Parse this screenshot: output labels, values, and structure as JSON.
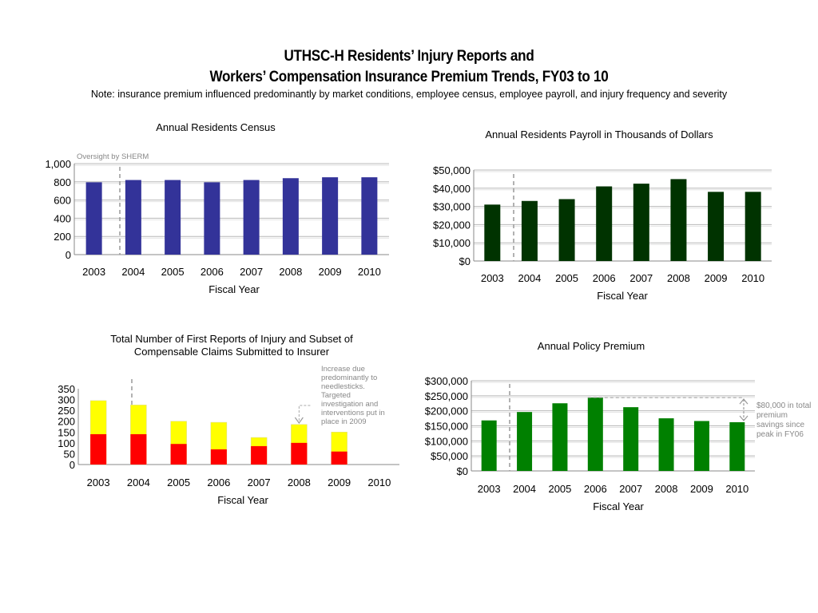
{
  "header": {
    "title_line1": "UTHSC-H Residents’ Injury Reports and",
    "title_line2": "Workers’ Compensation Insurance Premium Trends, FY03 to 10",
    "note": "Note: insurance premium influenced predominantly by market conditions, employee census, employee payroll, and injury frequency and severity"
  },
  "colors": {
    "census": "#333399",
    "payroll": "#003300",
    "injury_total": "#ffff00",
    "injury_claims": "#ff0000",
    "premium": "#008000",
    "grid": "#b8b8b8",
    "dashed": "#999999"
  },
  "chart_data": [
    {
      "id": "census",
      "type": "bar",
      "title": "Annual Residents Census",
      "xlabel": "Fiscal Year",
      "ylabel": "",
      "categories": [
        "2003",
        "2004",
        "2005",
        "2006",
        "2007",
        "2008",
        "2009",
        "2010"
      ],
      "values": [
        795,
        820,
        820,
        795,
        820,
        840,
        850,
        850
      ],
      "ylim": [
        0,
        1000
      ],
      "yticks": [
        "0",
        "200",
        "400",
        "600",
        "800",
        "1,000"
      ],
      "grid": true,
      "annotation": "Oversight by SHERM"
    },
    {
      "id": "payroll",
      "type": "bar",
      "title": "Annual Residents Payroll in Thousands of Dollars",
      "xlabel": "Fiscal Year",
      "ylabel": "",
      "categories": [
        "2003",
        "2004",
        "2005",
        "2006",
        "2007",
        "2008",
        "2009",
        "2010"
      ],
      "values": [
        31000,
        33000,
        34000,
        41000,
        42500,
        45000,
        38000,
        38000
      ],
      "ylim": [
        0,
        50000
      ],
      "yticks": [
        "$0",
        "$10,000",
        "$20,000",
        "$30,000",
        "$40,000",
        "$50,000"
      ],
      "grid": true
    },
    {
      "id": "injury",
      "type": "bar",
      "title": "Total Number of First Reports of Injury and Subset of Compensable Claims Submitted to Insurer",
      "title_lines": [
        "Total Number of First Reports of Injury and Subset of",
        "Compensable Claims Submitted to Insurer"
      ],
      "xlabel": "Fiscal Year",
      "ylabel": "",
      "categories": [
        "2003",
        "2004",
        "2005",
        "2006",
        "2007",
        "2008",
        "2009",
        "2010"
      ],
      "series": [
        {
          "values": [
            295,
            275,
            200,
            195,
            125,
            185,
            150,
            0
          ]
        },
        {
          "values": [
            140,
            140,
            95,
            70,
            85,
            100,
            60,
            0
          ]
        }
      ],
      "ylim": [
        0,
        350
      ],
      "yticks": [
        "0",
        "50",
        "100",
        "150",
        "200",
        "250",
        "300",
        "350"
      ],
      "grid": false,
      "annotation": "Increase due predominantly to needlesticks. Targeted investigation and interventions put in place in 2009"
    },
    {
      "id": "premium",
      "type": "bar",
      "title": "Annual Policy Premium",
      "xlabel": "Fiscal Year",
      "ylabel": "",
      "categories": [
        "2003",
        "2004",
        "2005",
        "2006",
        "2007",
        "2008",
        "2009",
        "2010"
      ],
      "values": [
        168000,
        196000,
        225000,
        244000,
        212000,
        175000,
        166000,
        162000
      ],
      "ylim": [
        0,
        300000
      ],
      "yticks": [
        "$0",
        "$50,000",
        "$100,000",
        "$150,000",
        "$200,000",
        "$250,000",
        "$300,000"
      ],
      "grid": true,
      "annotation": "$80,000 in total premium savings since peak in FY06"
    }
  ]
}
